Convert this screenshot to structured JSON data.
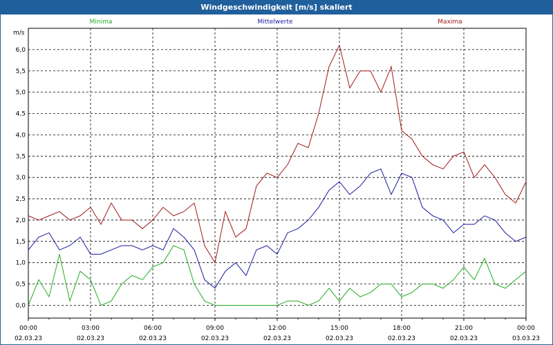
{
  "window": {
    "title": "Windgeschwindigkeit [m/s] skaliert"
  },
  "colors": {
    "min": "#22aa22",
    "mean": "#1a1aa0",
    "max": "#a01818",
    "titlebar": "#1f5f9c"
  },
  "chart_data": {
    "type": "line",
    "title": "Windgeschwindigkeit [m/s] skaliert",
    "ylabel": "m/s",
    "xlabel": "",
    "ylim": [
      -0.3,
      6.5
    ],
    "xlim": [
      0,
      24
    ],
    "grid": true,
    "legend_position": "top",
    "y_ticks": [
      "0,0",
      "0,5",
      "1,0",
      "1,5",
      "2,0",
      "2,5",
      "3,0",
      "3,5",
      "4,0",
      "4,5",
      "5,0",
      "5,5",
      "6,0"
    ],
    "x_ticks": [
      {
        "time": "00:00",
        "date": "02.03.23"
      },
      {
        "time": "03:00",
        "date": "02.03.23"
      },
      {
        "time": "06:00",
        "date": "02.03.23"
      },
      {
        "time": "09:00",
        "date": "02.03.23"
      },
      {
        "time": "12:00",
        "date": "02.03.23"
      },
      {
        "time": "15:00",
        "date": "02.03.23"
      },
      {
        "time": "18:00",
        "date": "02.03.23"
      },
      {
        "time": "21:00",
        "date": "02.03.23"
      },
      {
        "time": "00:00",
        "date": "03.03.23"
      }
    ],
    "x": [
      0,
      0.5,
      1,
      1.5,
      2,
      2.5,
      3,
      3.5,
      4,
      4.5,
      5,
      5.5,
      6,
      6.5,
      7,
      7.5,
      8,
      8.5,
      9,
      9.5,
      10,
      10.5,
      11,
      11.5,
      12,
      12.5,
      13,
      13.5,
      14,
      14.5,
      15,
      15.5,
      16,
      16.5,
      17,
      17.5,
      18,
      18.5,
      19,
      19.5,
      20,
      20.5,
      21,
      21.5,
      22,
      22.5,
      23,
      23.5,
      24
    ],
    "series": [
      {
        "name": "Minima",
        "values": [
          0.0,
          0.6,
          0.2,
          1.2,
          0.1,
          0.8,
          0.6,
          0.0,
          0.1,
          0.5,
          0.7,
          0.6,
          0.9,
          1.0,
          1.4,
          1.3,
          0.5,
          0.1,
          0.0,
          0.0,
          0.0,
          0.0,
          0.0,
          0.0,
          0.0,
          0.1,
          0.1,
          0.0,
          0.1,
          0.4,
          0.1,
          0.4,
          0.2,
          0.3,
          0.5,
          0.5,
          0.2,
          0.3,
          0.5,
          0.5,
          0.4,
          0.6,
          0.9,
          0.6,
          1.1,
          0.5,
          0.4,
          0.6,
          0.8
        ]
      },
      {
        "name": "Mittelwerte",
        "values": [
          1.3,
          1.6,
          1.7,
          1.3,
          1.4,
          1.6,
          1.2,
          1.2,
          1.3,
          1.4,
          1.4,
          1.3,
          1.4,
          1.3,
          1.8,
          1.6,
          1.3,
          0.6,
          0.4,
          0.8,
          1.0,
          0.7,
          1.3,
          1.4,
          1.2,
          1.7,
          1.8,
          2.0,
          2.3,
          2.7,
          2.9,
          2.6,
          2.8,
          3.1,
          3.2,
          2.6,
          3.1,
          3.0,
          2.3,
          2.1,
          2.0,
          1.7,
          1.9,
          1.9,
          2.1,
          2.0,
          1.7,
          1.5,
          1.6
        ]
      },
      {
        "name": "Maxima",
        "values": [
          2.1,
          2.0,
          2.1,
          2.2,
          2.0,
          2.1,
          2.3,
          1.9,
          2.4,
          2.0,
          2.0,
          1.8,
          2.0,
          2.3,
          2.1,
          2.2,
          2.4,
          1.4,
          1.0,
          2.2,
          1.6,
          1.8,
          2.8,
          3.1,
          3.0,
          3.3,
          3.8,
          3.7,
          4.5,
          5.6,
          6.1,
          5.1,
          5.5,
          5.5,
          5.0,
          5.6,
          4.1,
          3.9,
          3.5,
          3.3,
          3.2,
          3.5,
          3.6,
          3.0,
          3.3,
          3.0,
          2.6,
          2.4,
          2.9
        ]
      }
    ]
  }
}
